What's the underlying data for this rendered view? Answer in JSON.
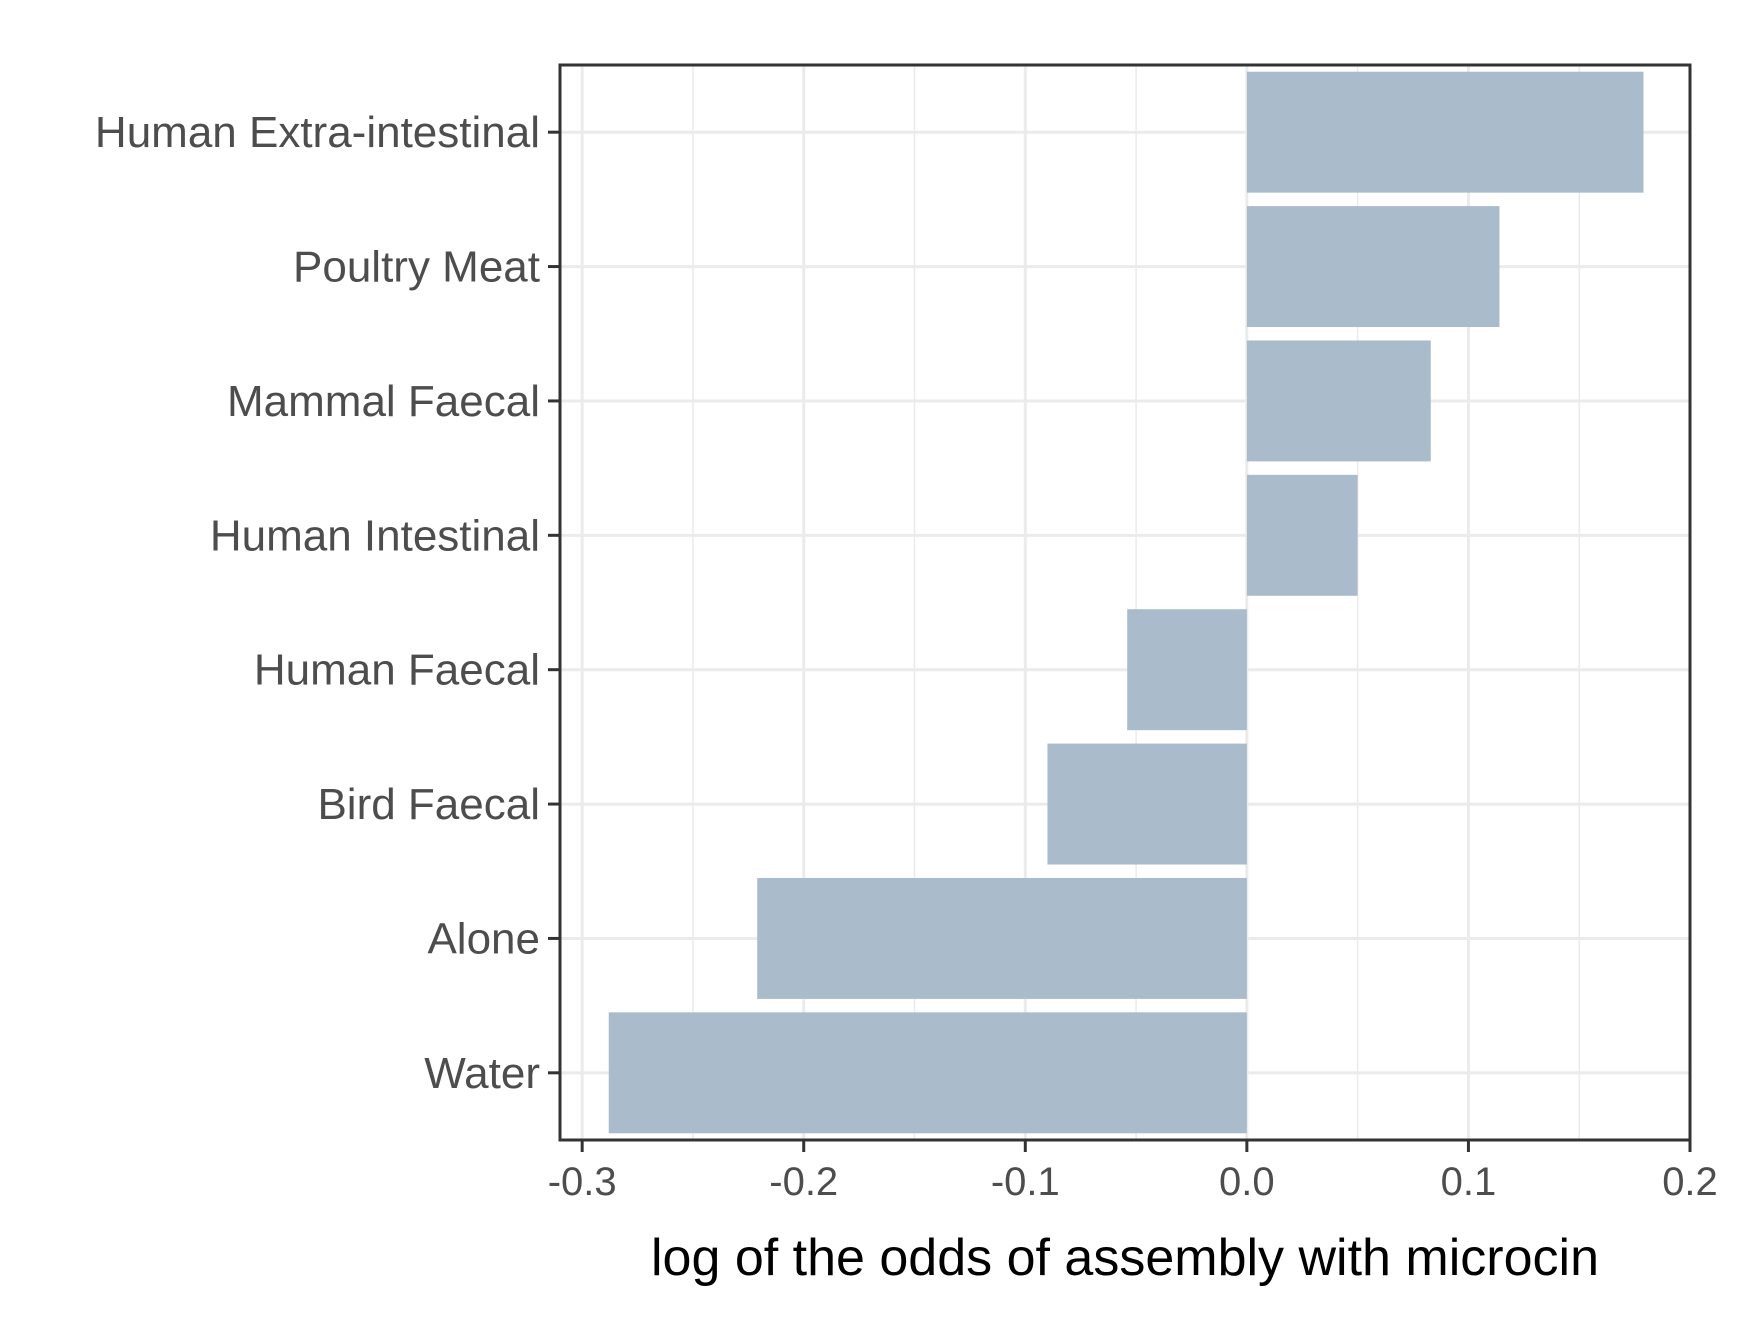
{
  "chart_data": {
    "type": "bar",
    "orientation": "horizontal",
    "categories": [
      "Human Extra-intestinal",
      "Poultry Meat",
      "Mammal Faecal",
      "Human Intestinal",
      "Human Faecal",
      "Bird Faecal",
      "Alone",
      "Water"
    ],
    "values": [
      0.179,
      0.114,
      0.083,
      0.05,
      -0.054,
      -0.09,
      -0.221,
      -0.288
    ],
    "title": "",
    "xlabel": "log of the odds of assembly with microcin",
    "ylabel": "",
    "xlim": [
      -0.31,
      0.2
    ],
    "xticks": [
      -0.3,
      -0.2,
      -0.1,
      0.0,
      0.1,
      0.2
    ],
    "xtick_labels": [
      "-0.3",
      "-0.2",
      "-0.1",
      "0.0",
      "0.1",
      "0.2"
    ],
    "grid": true,
    "legend": "none",
    "bar_color": "#aabccb",
    "grid_color": "#ebebeb",
    "frame_color": "#333333"
  }
}
